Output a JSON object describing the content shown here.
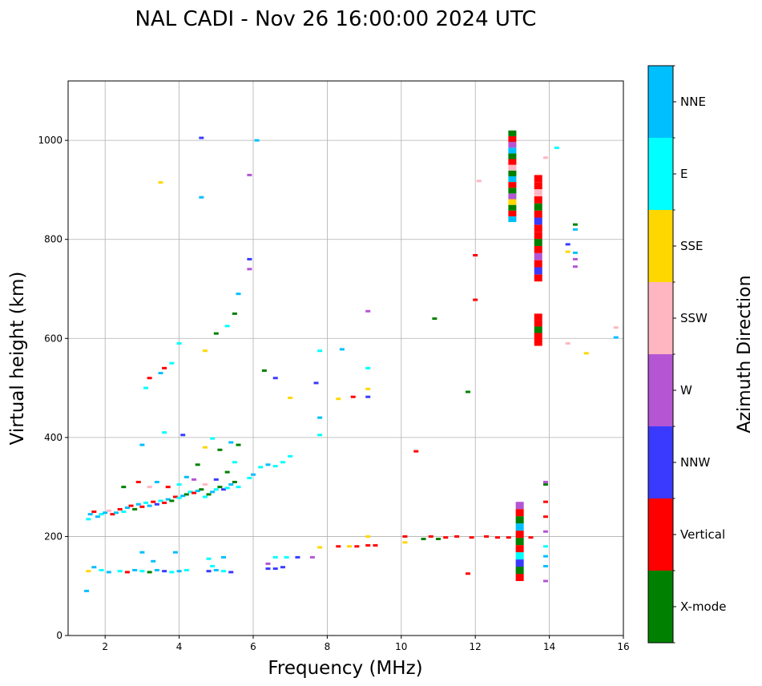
{
  "chart_data": {
    "type": "scatter",
    "title": "NAL CADI - Nov 26 16:00:00 2024 UTC",
    "xlabel": "Frequency (MHz)",
    "ylabel": "Virtual height (km)",
    "xlim": [
      1.0,
      16.0
    ],
    "ylim": [
      0,
      1120
    ],
    "xticks": [
      2,
      4,
      6,
      8,
      10,
      12,
      14,
      16
    ],
    "yticks": [
      0,
      200,
      400,
      600,
      800,
      1000
    ],
    "grid": true,
    "colorbar": {
      "label": "Azimuth Direction",
      "categories": [
        {
          "name": "X-mode",
          "color": "#008000"
        },
        {
          "name": "Vertical",
          "color": "#ff0000"
        },
        {
          "name": "NNW",
          "color": "#3a3aff"
        },
        {
          "name": "W",
          "color": "#b455d4"
        },
        {
          "name": "SSW",
          "color": "#ffb6c1"
        },
        {
          "name": "SSE",
          "color": "#ffd700"
        },
        {
          "name": "E",
          "color": "#00ffff"
        },
        {
          "name": "NNE",
          "color": "#00bfff"
        }
      ]
    },
    "points": [
      {
        "f": 1.55,
        "h": 235,
        "c": "E"
      },
      {
        "f": 1.6,
        "h": 245,
        "c": "NNE"
      },
      {
        "f": 1.7,
        "h": 250,
        "c": "Vertical"
      },
      {
        "f": 1.8,
        "h": 240,
        "c": "NNE"
      },
      {
        "f": 1.9,
        "h": 245,
        "c": "E"
      },
      {
        "f": 2.0,
        "h": 248,
        "c": "NNE"
      },
      {
        "f": 2.1,
        "h": 252,
        "c": "SSW"
      },
      {
        "f": 2.2,
        "h": 245,
        "c": "Vertical"
      },
      {
        "f": 2.3,
        "h": 248,
        "c": "NNE"
      },
      {
        "f": 2.4,
        "h": 255,
        "c": "Vertical"
      },
      {
        "f": 2.5,
        "h": 250,
        "c": "E"
      },
      {
        "f": 2.6,
        "h": 258,
        "c": "NNE"
      },
      {
        "f": 2.7,
        "h": 262,
        "c": "Vertical"
      },
      {
        "f": 2.8,
        "h": 255,
        "c": "X-mode"
      },
      {
        "f": 2.9,
        "h": 265,
        "c": "NNE"
      },
      {
        "f": 3.0,
        "h": 260,
        "c": "Vertical"
      },
      {
        "f": 3.1,
        "h": 268,
        "c": "E"
      },
      {
        "f": 3.2,
        "h": 262,
        "c": "NNE"
      },
      {
        "f": 3.3,
        "h": 270,
        "c": "Vertical"
      },
      {
        "f": 3.4,
        "h": 265,
        "c": "NNW"
      },
      {
        "f": 3.5,
        "h": 272,
        "c": "E"
      },
      {
        "f": 3.6,
        "h": 268,
        "c": "Vertical"
      },
      {
        "f": 3.7,
        "h": 275,
        "c": "NNE"
      },
      {
        "f": 3.8,
        "h": 272,
        "c": "X-mode"
      },
      {
        "f": 3.9,
        "h": 280,
        "c": "Vertical"
      },
      {
        "f": 4.0,
        "h": 278,
        "c": "E"
      },
      {
        "f": 4.1,
        "h": 282,
        "c": "NNE"
      },
      {
        "f": 4.2,
        "h": 285,
        "c": "X-mode"
      },
      {
        "f": 4.3,
        "h": 290,
        "c": "E"
      },
      {
        "f": 4.4,
        "h": 288,
        "c": "Vertical"
      },
      {
        "f": 4.5,
        "h": 292,
        "c": "NNE"
      },
      {
        "f": 4.6,
        "h": 295,
        "c": "X-mode"
      },
      {
        "f": 4.7,
        "h": 280,
        "c": "E"
      },
      {
        "f": 4.8,
        "h": 285,
        "c": "X-mode"
      },
      {
        "f": 4.9,
        "h": 290,
        "c": "NNE"
      },
      {
        "f": 5.0,
        "h": 295,
        "c": "E"
      },
      {
        "f": 5.1,
        "h": 300,
        "c": "X-mode"
      },
      {
        "f": 5.2,
        "h": 295,
        "c": "NNW"
      },
      {
        "f": 5.3,
        "h": 298,
        "c": "E"
      },
      {
        "f": 5.4,
        "h": 305,
        "c": "NNE"
      },
      {
        "f": 5.5,
        "h": 310,
        "c": "X-mode"
      },
      {
        "f": 5.6,
        "h": 300,
        "c": "E"
      },
      {
        "f": 5.9,
        "h": 318,
        "c": "E"
      },
      {
        "f": 6.0,
        "h": 325,
        "c": "NNE"
      },
      {
        "f": 6.2,
        "h": 340,
        "c": "E"
      },
      {
        "f": 6.4,
        "h": 345,
        "c": "NNE"
      },
      {
        "f": 6.6,
        "h": 342,
        "c": "E"
      },
      {
        "f": 6.8,
        "h": 350,
        "c": "E"
      },
      {
        "f": 7.0,
        "h": 362,
        "c": "E"
      },
      {
        "f": 7.8,
        "h": 405,
        "c": "E"
      },
      {
        "f": 7.8,
        "h": 440,
        "c": "NNE"
      },
      {
        "f": 2.5,
        "h": 300,
        "c": "X-mode"
      },
      {
        "f": 2.9,
        "h": 310,
        "c": "Vertical"
      },
      {
        "f": 3.2,
        "h": 300,
        "c": "SSW"
      },
      {
        "f": 3.4,
        "h": 310,
        "c": "NNE"
      },
      {
        "f": 3.7,
        "h": 300,
        "c": "Vertical"
      },
      {
        "f": 4.0,
        "h": 305,
        "c": "E"
      },
      {
        "f": 4.2,
        "h": 320,
        "c": "NNE"
      },
      {
        "f": 4.4,
        "h": 315,
        "c": "W"
      },
      {
        "f": 4.7,
        "h": 305,
        "c": "SSW"
      },
      {
        "f": 5.0,
        "h": 315,
        "c": "NNW"
      },
      {
        "f": 5.3,
        "h": 330,
        "c": "X-mode"
      },
      {
        "f": 5.5,
        "h": 350,
        "c": "E"
      },
      {
        "f": 4.5,
        "h": 345,
        "c": "X-mode"
      },
      {
        "f": 4.7,
        "h": 380,
        "c": "SSE"
      },
      {
        "f": 4.9,
        "h": 398,
        "c": "E"
      },
      {
        "f": 5.1,
        "h": 375,
        "c": "X-mode"
      },
      {
        "f": 5.4,
        "h": 390,
        "c": "NNE"
      },
      {
        "f": 5.6,
        "h": 385,
        "c": "X-mode"
      },
      {
        "f": 3.0,
        "h": 385,
        "c": "NNE"
      },
      {
        "f": 3.6,
        "h": 410,
        "c": "E"
      },
      {
        "f": 4.1,
        "h": 405,
        "c": "NNW"
      },
      {
        "f": 3.1,
        "h": 500,
        "c": "E"
      },
      {
        "f": 3.2,
        "h": 520,
        "c": "Vertical"
      },
      {
        "f": 3.5,
        "h": 530,
        "c": "NNE"
      },
      {
        "f": 3.6,
        "h": 540,
        "c": "Vertical"
      },
      {
        "f": 3.8,
        "h": 550,
        "c": "E"
      },
      {
        "f": 4.0,
        "h": 590,
        "c": "E"
      },
      {
        "f": 4.7,
        "h": 575,
        "c": "SSE"
      },
      {
        "f": 5.0,
        "h": 610,
        "c": "X-mode"
      },
      {
        "f": 5.3,
        "h": 625,
        "c": "E"
      },
      {
        "f": 5.5,
        "h": 650,
        "c": "X-mode"
      },
      {
        "f": 5.6,
        "h": 690,
        "c": "NNE"
      },
      {
        "f": 5.9,
        "h": 740,
        "c": "W"
      },
      {
        "f": 5.9,
        "h": 760,
        "c": "NNW"
      },
      {
        "f": 5.9,
        "h": 930,
        "c": "W"
      },
      {
        "f": 4.6,
        "h": 885,
        "c": "NNE"
      },
      {
        "f": 4.6,
        "h": 1005,
        "c": "NNW"
      },
      {
        "f": 6.1,
        "h": 1000,
        "c": "NNE"
      },
      {
        "f": 3.5,
        "h": 915,
        "c": "SSE"
      },
      {
        "f": 6.3,
        "h": 535,
        "c": "X-mode"
      },
      {
        "f": 6.6,
        "h": 520,
        "c": "NNW"
      },
      {
        "f": 7.0,
        "h": 480,
        "c": "SSE"
      },
      {
        "f": 7.7,
        "h": 510,
        "c": "NNW"
      },
      {
        "f": 7.8,
        "h": 575,
        "c": "E"
      },
      {
        "f": 8.4,
        "h": 578,
        "c": "NNE"
      },
      {
        "f": 8.3,
        "h": 478,
        "c": "SSE"
      },
      {
        "f": 8.7,
        "h": 482,
        "c": "Vertical"
      },
      {
        "f": 9.1,
        "h": 482,
        "c": "NNW"
      },
      {
        "f": 9.1,
        "h": 498,
        "c": "SSE"
      },
      {
        "f": 9.1,
        "h": 540,
        "c": "E"
      },
      {
        "f": 9.1,
        "h": 655,
        "c": "W"
      },
      {
        "f": 10.4,
        "h": 372,
        "c": "Vertical"
      },
      {
        "f": 10.9,
        "h": 640,
        "c": "X-mode"
      },
      {
        "f": 11.8,
        "h": 492,
        "c": "X-mode"
      },
      {
        "f": 12.0,
        "h": 678,
        "c": "Vertical"
      },
      {
        "f": 12.0,
        "h": 768,
        "c": "Vertical"
      },
      {
        "f": 12.1,
        "h": 918,
        "c": "SSW"
      },
      {
        "f": 1.55,
        "h": 130,
        "c": "SSE"
      },
      {
        "f": 1.7,
        "h": 138,
        "c": "NNE"
      },
      {
        "f": 1.9,
        "h": 132,
        "c": "E"
      },
      {
        "f": 2.1,
        "h": 128,
        "c": "NNE"
      },
      {
        "f": 2.4,
        "h": 130,
        "c": "E"
      },
      {
        "f": 2.6,
        "h": 128,
        "c": "Vertical"
      },
      {
        "f": 2.8,
        "h": 132,
        "c": "NNE"
      },
      {
        "f": 3.0,
        "h": 130,
        "c": "E"
      },
      {
        "f": 3.2,
        "h": 128,
        "c": "X-mode"
      },
      {
        "f": 3.4,
        "h": 132,
        "c": "NNE"
      },
      {
        "f": 3.6,
        "h": 130,
        "c": "NNW"
      },
      {
        "f": 3.8,
        "h": 128,
        "c": "E"
      },
      {
        "f": 4.0,
        "h": 130,
        "c": "NNE"
      },
      {
        "f": 4.2,
        "h": 132,
        "c": "E"
      },
      {
        "f": 4.8,
        "h": 130,
        "c": "NNW"
      },
      {
        "f": 5.0,
        "h": 132,
        "c": "NNE"
      },
      {
        "f": 5.2,
        "h": 130,
        "c": "E"
      },
      {
        "f": 5.4,
        "h": 128,
        "c": "NNW"
      },
      {
        "f": 4.8,
        "h": 155,
        "c": "E"
      },
      {
        "f": 5.2,
        "h": 158,
        "c": "NNE"
      },
      {
        "f": 4.9,
        "h": 140,
        "c": "E"
      },
      {
        "f": 3.3,
        "h": 150,
        "c": "NNE"
      },
      {
        "f": 3.9,
        "h": 168,
        "c": "NNE"
      },
      {
        "f": 3.0,
        "h": 168,
        "c": "NNE"
      },
      {
        "f": 6.4,
        "h": 135,
        "c": "NNW"
      },
      {
        "f": 6.6,
        "h": 135,
        "c": "NNW"
      },
      {
        "f": 6.8,
        "h": 138,
        "c": "NNW"
      },
      {
        "f": 6.4,
        "h": 145,
        "c": "W"
      },
      {
        "f": 6.6,
        "h": 158,
        "c": "E"
      },
      {
        "f": 6.9,
        "h": 158,
        "c": "E"
      },
      {
        "f": 7.2,
        "h": 158,
        "c": "NNW"
      },
      {
        "f": 7.6,
        "h": 158,
        "c": "W"
      },
      {
        "f": 7.8,
        "h": 178,
        "c": "SSE"
      },
      {
        "f": 8.3,
        "h": 180,
        "c": "Vertical"
      },
      {
        "f": 8.6,
        "h": 180,
        "c": "SSE"
      },
      {
        "f": 8.8,
        "h": 180,
        "c": "Vertical"
      },
      {
        "f": 9.1,
        "h": 182,
        "c": "Vertical"
      },
      {
        "f": 9.3,
        "h": 182,
        "c": "Vertical"
      },
      {
        "f": 9.1,
        "h": 200,
        "c": "SSE"
      },
      {
        "f": 10.1,
        "h": 200,
        "c": "Vertical"
      },
      {
        "f": 10.1,
        "h": 188,
        "c": "SSE"
      },
      {
        "f": 10.6,
        "h": 195,
        "c": "X-mode"
      },
      {
        "f": 10.8,
        "h": 200,
        "c": "Vertical"
      },
      {
        "f": 11.0,
        "h": 195,
        "c": "X-mode"
      },
      {
        "f": 11.2,
        "h": 198,
        "c": "Vertical"
      },
      {
        "f": 11.5,
        "h": 200,
        "c": "Vertical"
      },
      {
        "f": 11.9,
        "h": 198,
        "c": "Vertical"
      },
      {
        "f": 12.3,
        "h": 200,
        "c": "Vertical"
      },
      {
        "f": 12.6,
        "h": 198,
        "c": "Vertical"
      },
      {
        "f": 12.9,
        "h": 198,
        "c": "Vertical"
      },
      {
        "f": 13.5,
        "h": 198,
        "c": "Vertical"
      },
      {
        "f": 11.8,
        "h": 125,
        "c": "Vertical"
      },
      {
        "f": 1.5,
        "h": 90,
        "c": "NNE"
      },
      {
        "f": 13.9,
        "h": 110,
        "c": "W"
      },
      {
        "f": 13.9,
        "h": 140,
        "c": "NNE"
      },
      {
        "f": 13.9,
        "h": 160,
        "c": "NNE"
      },
      {
        "f": 13.9,
        "h": 180,
        "c": "E"
      },
      {
        "f": 13.9,
        "h": 210,
        "c": "W"
      },
      {
        "f": 13.9,
        "h": 240,
        "c": "Vertical"
      },
      {
        "f": 13.9,
        "h": 270,
        "c": "Vertical"
      },
      {
        "f": 13.9,
        "h": 305,
        "c": "X-mode"
      },
      {
        "f": 13.9,
        "h": 310,
        "c": "W"
      },
      {
        "f": 14.2,
        "h": 985,
        "c": "E"
      },
      {
        "f": 13.9,
        "h": 965,
        "c": "SSW"
      },
      {
        "f": 14.5,
        "h": 790,
        "c": "NNW"
      },
      {
        "f": 14.5,
        "h": 775,
        "c": "SSE"
      },
      {
        "f": 14.7,
        "h": 820,
        "c": "NNE"
      },
      {
        "f": 14.7,
        "h": 830,
        "c": "X-mode"
      },
      {
        "f": 14.7,
        "h": 773,
        "c": "NNE"
      },
      {
        "f": 14.7,
        "h": 760,
        "c": "W"
      },
      {
        "f": 14.7,
        "h": 745,
        "c": "W"
      },
      {
        "f": 14.5,
        "h": 590,
        "c": "SSW"
      },
      {
        "f": 15.0,
        "h": 570,
        "c": "SSE"
      },
      {
        "f": 15.8,
        "h": 622,
        "c": "SSW"
      },
      {
        "f": 15.8,
        "h": 602,
        "c": "NNE"
      }
    ],
    "bands": [
      {
        "f": 13.2,
        "h0": 110,
        "h1": 270,
        "c": [
          "Vertical",
          "X-mode",
          "NNW",
          "E",
          "Vertical",
          "X-mode",
          "Vertical",
          "NNE",
          "X-mode",
          "Vertical",
          "W"
        ]
      },
      {
        "f": 13.7,
        "h0": 585,
        "h1": 650,
        "c": [
          "Vertical",
          "Vertical",
          "X-mode",
          "Vertical",
          "Vertical"
        ]
      },
      {
        "f": 13.7,
        "h0": 715,
        "h1": 930,
        "c": [
          "Vertical",
          "NNW",
          "Vertical",
          "W",
          "Vertical",
          "X-mode",
          "Vertical",
          "Vertical",
          "NNW",
          "Vertical",
          "X-mode",
          "Vertical",
          "SSW",
          "Vertical",
          "Vertical"
        ]
      },
      {
        "f": 13.0,
        "h0": 835,
        "h1": 1020,
        "c": [
          "NNE",
          "Vertical",
          "X-mode",
          "SSE",
          "W",
          "X-mode",
          "Vertical",
          "NNE",
          "X-mode",
          "SSW",
          "Vertical",
          "X-mode",
          "NNE",
          "W",
          "Vertical",
          "X-mode"
        ]
      }
    ]
  }
}
